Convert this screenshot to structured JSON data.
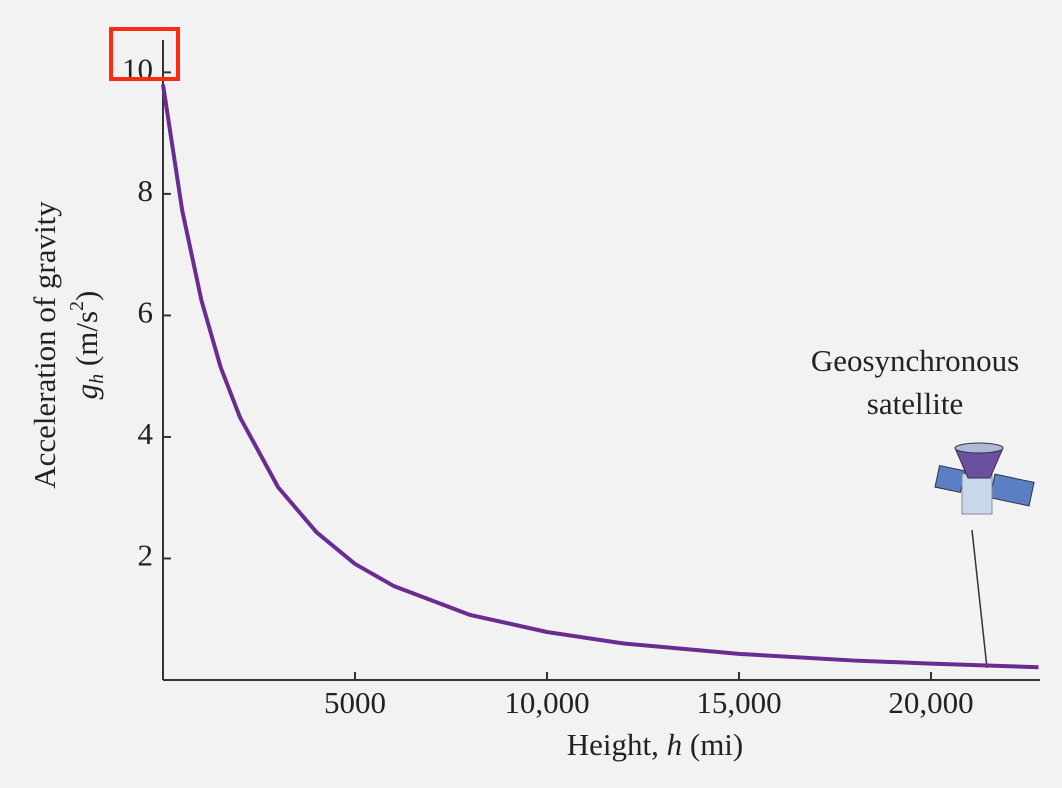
{
  "chart_data": {
    "type": "line",
    "x_label": {
      "text": "Height, ",
      "symbol": "h",
      "unit": " (mi)"
    },
    "y_label": {
      "line1": "Acceleration of gravity",
      "symbol": "g",
      "subscript": "h",
      "unit": " (m/s",
      "unit_exponent": "2",
      "unit_close": ")"
    },
    "annotation": [
      "Geosynchronous",
      "satellite"
    ],
    "x": [
      0,
      500,
      1000,
      1500,
      2000,
      3000,
      4000,
      5000,
      6000,
      8000,
      10000,
      12000,
      15000,
      18000,
      20000,
      22800
    ],
    "values": [
      9.8,
      7.73,
      6.25,
      5.15,
      4.33,
      3.17,
      2.43,
      1.91,
      1.55,
      1.07,
      0.79,
      0.6,
      0.43,
      0.32,
      0.27,
      0.21
    ],
    "color": "#6a2c91",
    "xlim": [
      0,
      22800
    ],
    "ylim": [
      0,
      10.5
    ],
    "xticks": [
      5000,
      {
        "value": 10000,
        "label": "10,000"
      },
      {
        "value": 15000,
        "label": "15,000"
      },
      {
        "value": 20000,
        "label": "20,000"
      }
    ],
    "yticks": [
      2,
      4,
      6,
      8,
      10
    ]
  }
}
